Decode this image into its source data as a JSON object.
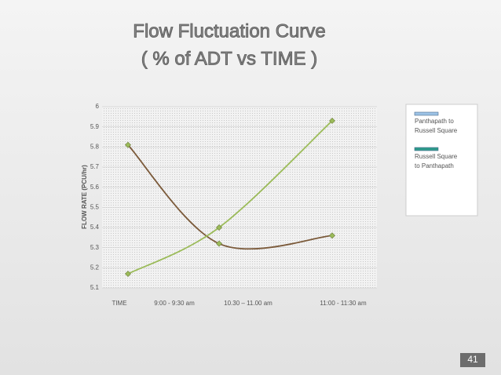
{
  "title": "Flow Fluctuation Curve",
  "subtitle": "( % of ADT vs TIME )",
  "slide_number": "41",
  "chart_data": {
    "type": "line",
    "y_label": "FLOW RATE (PCU/hr)",
    "x_label": "TIME",
    "categories": [
      "9:00 - 9:30 am",
      "10.30 – 11.00 am",
      "11:00 - 11:30 am"
    ],
    "series": [
      {
        "name": "Panthapath to Russell Square",
        "color": "#7b5a3a",
        "legend_color": "#9dc3e6",
        "values": [
          5.81,
          5.32,
          5.36
        ]
      },
      {
        "name": "Russell Square to Panthapath",
        "color": "#9bbb59",
        "legend_color": "#2e9c8c",
        "values": [
          5.17,
          5.4,
          5.93
        ]
      }
    ],
    "ylim": [
      5.1,
      6
    ],
    "yticks": [
      5.1,
      5.2,
      5.3,
      5.4,
      5.5,
      5.6,
      5.7,
      5.8,
      5.9,
      6
    ],
    "grid": true
  }
}
